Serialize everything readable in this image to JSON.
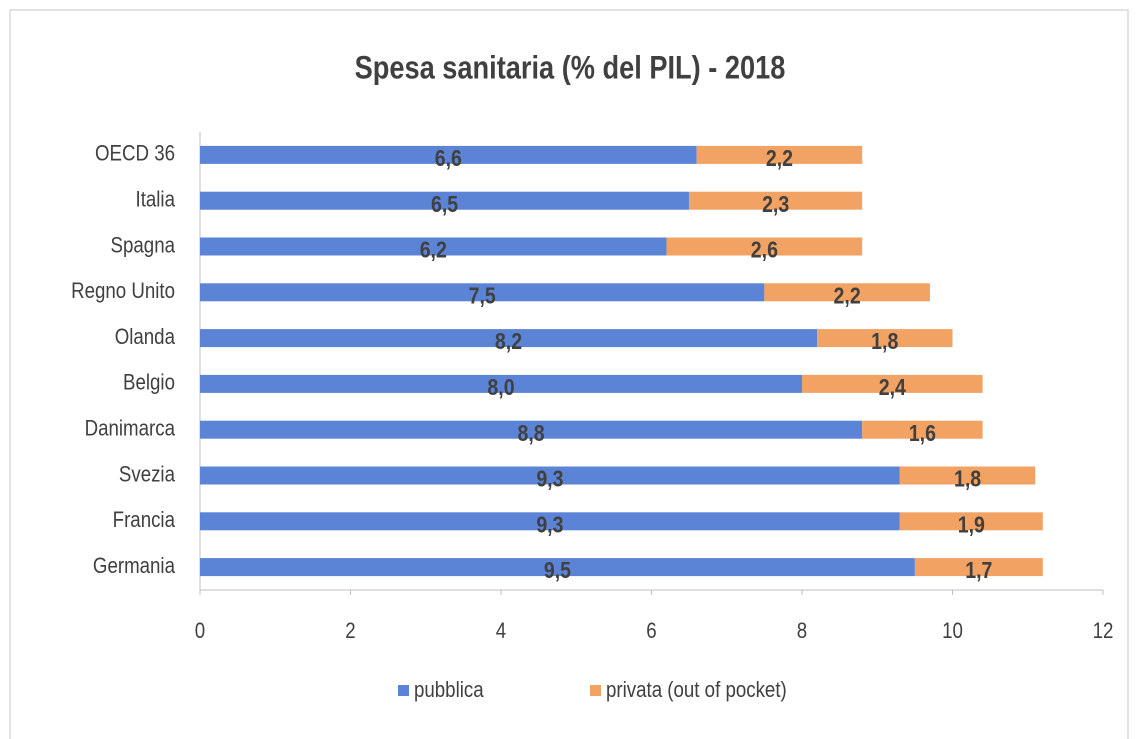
{
  "chart_data": {
    "type": "stacked-barh",
    "title": "Spesa sanitaria (% del PIL) - 2018",
    "categories": [
      "OECD 36",
      "Italia",
      "Spagna",
      "Regno Unito",
      "Olanda",
      "Belgio",
      "Danimarca",
      "Svezia",
      "Francia",
      "Germania"
    ],
    "series": [
      {
        "name": "pubblica",
        "color": "#5b84d6",
        "values": [
          6.6,
          6.5,
          6.2,
          7.5,
          8.2,
          8.0,
          8.8,
          9.3,
          9.3,
          9.5
        ],
        "value_labels": [
          "6,6",
          "6,5",
          "6,2",
          "7,5",
          "8,2",
          "8,0",
          "8,8",
          "9,3",
          "9,3",
          "9,5"
        ]
      },
      {
        "name": "privata (out of pocket)",
        "color": "#f2a262",
        "values": [
          2.2,
          2.3,
          2.6,
          2.2,
          1.8,
          2.4,
          1.6,
          1.8,
          1.9,
          1.7
        ],
        "value_labels": [
          "2,2",
          "2,3",
          "2,6",
          "2,2",
          "1,8",
          "2,4",
          "1,6",
          "1,8",
          "1,9",
          "1,7"
        ]
      }
    ],
    "xlim": [
      0,
      12
    ],
    "xticks": [
      0,
      2,
      4,
      6,
      8,
      10,
      12
    ],
    "legend": "bottom"
  }
}
